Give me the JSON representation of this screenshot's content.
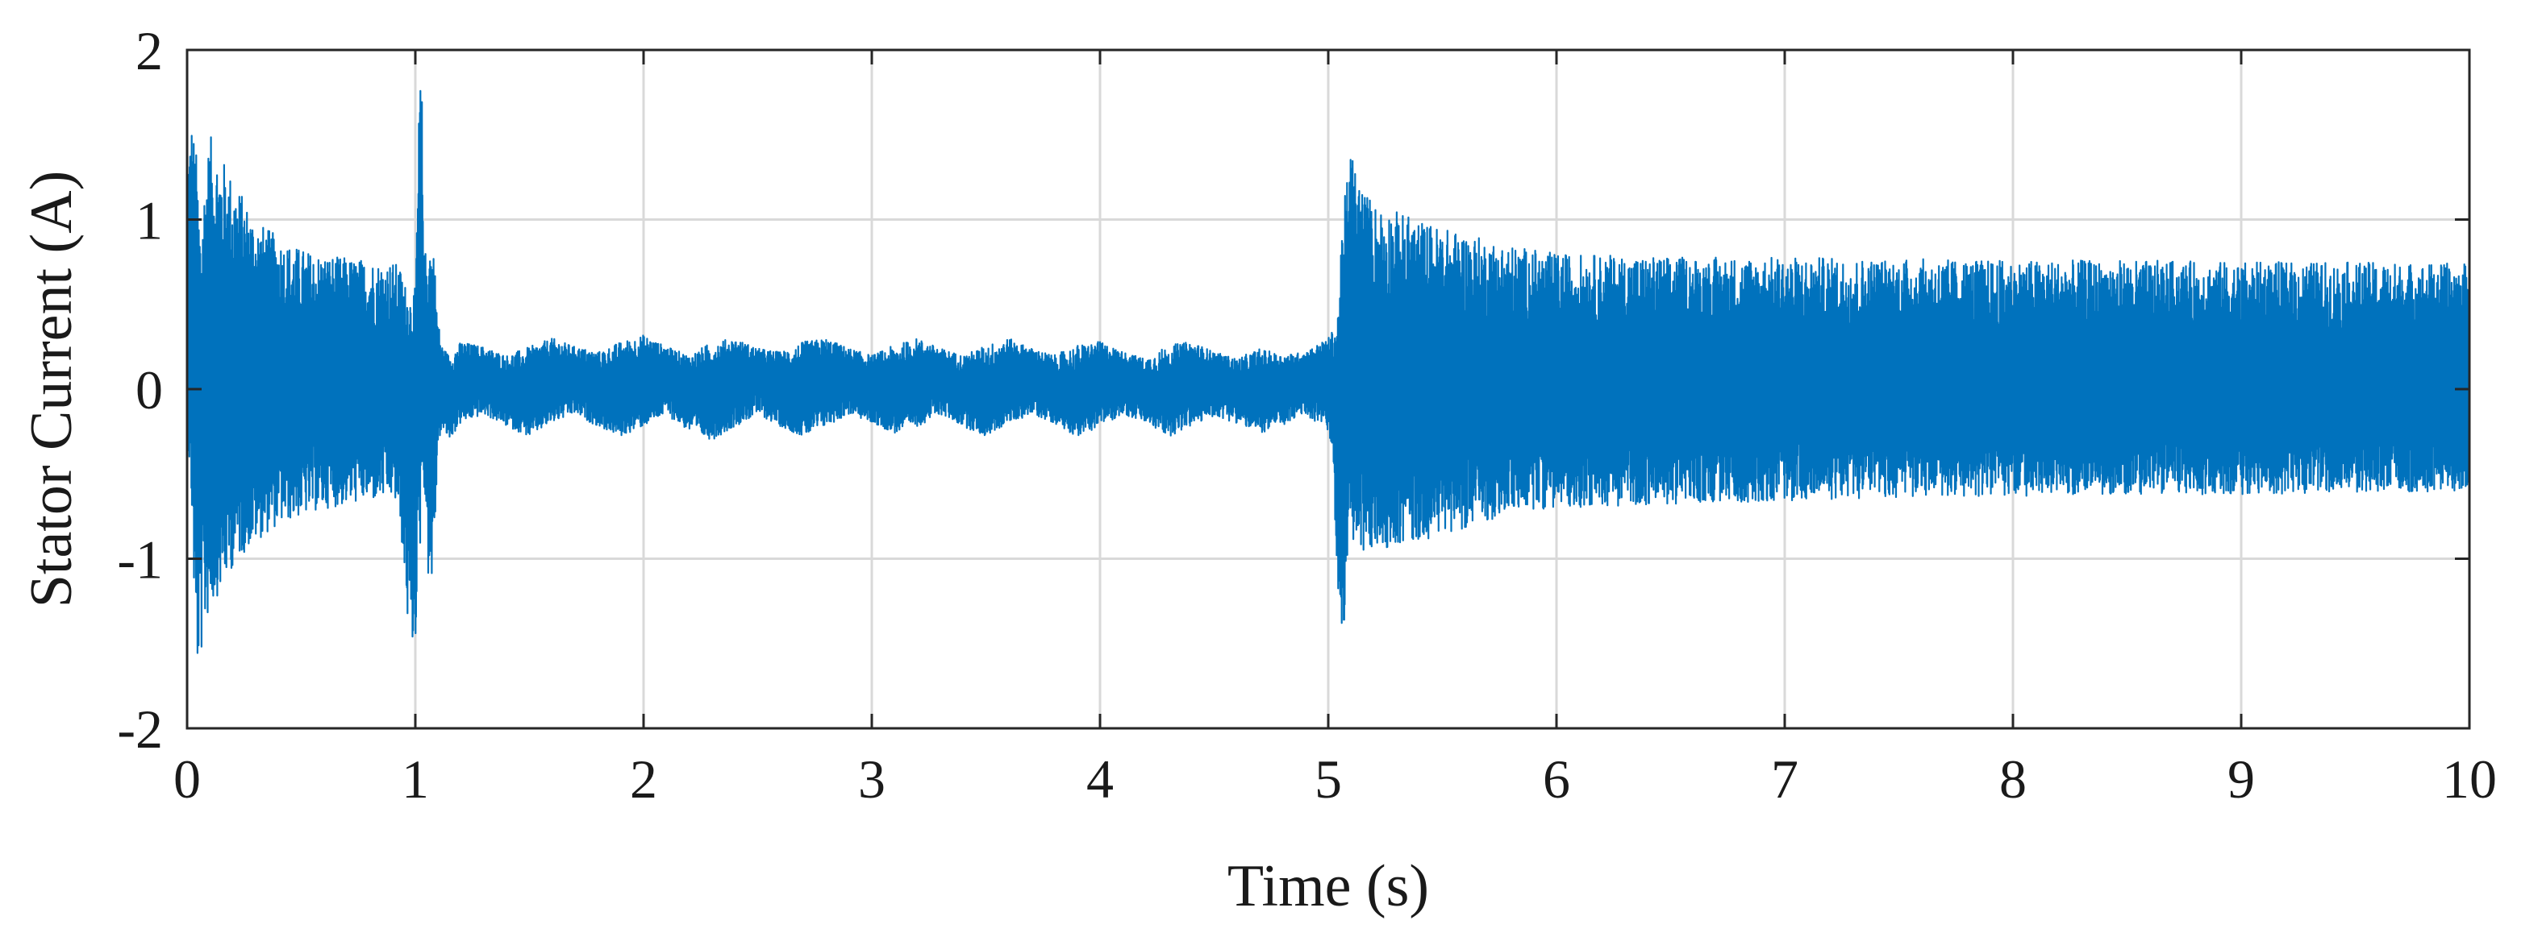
{
  "chart_data": {
    "type": "line",
    "title": "",
    "xlabel": "Time (s)",
    "ylabel": "Stator Current (A)",
    "xlim": [
      0,
      10
    ],
    "ylim": [
      -2,
      2
    ],
    "x_ticks": [
      0,
      1,
      2,
      3,
      4,
      5,
      6,
      7,
      8,
      9,
      10
    ],
    "x_tick_labels": [
      "0",
      "1",
      "2",
      "3",
      "4",
      "5",
      "6",
      "7",
      "8",
      "9",
      "10"
    ],
    "y_ticks": [
      2,
      1,
      0,
      -1,
      -2
    ],
    "y_tick_labels": [
      "2",
      "1",
      "0",
      "-1",
      "-2"
    ],
    "grid": true,
    "legend": "none",
    "color": "#0072bd",
    "series": [
      {
        "description_note": "",
        "x": [
          0.0,
          0.02,
          0.04,
          0.06,
          0.08,
          0.1,
          0.12,
          0.14,
          0.16,
          0.18,
          0.2,
          0.22,
          0.24,
          0.26,
          0.28,
          0.3,
          0.32,
          0.34,
          0.36,
          0.38,
          0.4,
          0.42,
          0.44,
          0.46,
          0.48,
          0.5,
          0.52,
          0.54,
          0.56,
          0.58,
          0.6,
          0.62,
          0.64,
          0.66,
          0.68,
          0.7,
          0.72,
          0.74,
          0.76,
          0.78,
          0.8,
          0.82,
          0.84,
          0.86,
          0.88,
          0.9,
          0.92,
          0.94,
          0.96,
          0.98,
          1.0,
          1.02,
          1.03,
          1.04,
          1.06,
          1.08,
          1.1,
          1.12,
          1.15,
          1.2,
          1.3,
          1.4,
          1.5,
          1.6,
          1.7,
          1.8,
          1.9,
          2.0,
          2.1,
          2.2,
          2.3,
          2.4,
          2.5,
          2.6,
          2.7,
          2.8,
          2.9,
          3.0,
          3.1,
          3.2,
          3.3,
          3.4,
          3.5,
          3.6,
          3.7,
          3.8,
          3.9,
          4.0,
          4.1,
          4.2,
          4.3,
          4.4,
          4.5,
          4.6,
          4.7,
          4.8,
          4.9,
          5.0,
          5.02,
          5.04,
          5.06,
          5.08,
          5.1,
          5.15,
          5.2,
          5.3,
          5.4,
          5.5,
          5.6,
          5.7,
          5.8,
          6.0,
          6.5,
          7.0,
          7.5,
          8.0,
          8.5,
          9.0,
          9.5,
          10.0
        ],
        "y_upper": [
          1.4,
          1.6,
          1.4,
          0.9,
          1.3,
          1.5,
          1.45,
          1.4,
          1.35,
          1.3,
          1.25,
          1.2,
          1.15,
          1.1,
          1.05,
          1.0,
          0.98,
          0.96,
          0.94,
          0.92,
          0.9,
          0.88,
          0.86,
          0.85,
          0.84,
          0.83,
          0.82,
          0.81,
          0.8,
          0.8,
          0.8,
          0.79,
          0.79,
          0.78,
          0.78,
          0.78,
          0.77,
          0.77,
          0.77,
          0.76,
          0.76,
          0.76,
          0.75,
          0.75,
          0.75,
          0.75,
          0.74,
          0.7,
          0.6,
          0.55,
          0.6,
          1.9,
          1.7,
          0.8,
          0.9,
          0.85,
          0.4,
          0.25,
          0.2,
          0.28,
          0.25,
          0.2,
          0.25,
          0.3,
          0.25,
          0.22,
          0.28,
          0.32,
          0.25,
          0.2,
          0.28,
          0.3,
          0.24,
          0.22,
          0.28,
          0.3,
          0.24,
          0.2,
          0.26,
          0.3,
          0.24,
          0.2,
          0.26,
          0.3,
          0.24,
          0.2,
          0.26,
          0.28,
          0.22,
          0.18,
          0.26,
          0.28,
          0.22,
          0.18,
          0.24,
          0.2,
          0.22,
          0.3,
          0.35,
          0.4,
          0.9,
          1.3,
          1.42,
          1.2,
          1.1,
          1.05,
          1.0,
          0.95,
          0.92,
          0.88,
          0.85,
          0.8,
          0.78,
          0.78,
          0.77,
          0.76,
          0.76,
          0.75,
          0.75,
          0.74
        ],
        "y_lower": [
          -0.2,
          -0.7,
          -1.7,
          -1.6,
          -1.4,
          -1.3,
          -1.25,
          -1.2,
          -1.15,
          -1.1,
          -1.05,
          -1.0,
          -0.98,
          -0.95,
          -0.92,
          -0.9,
          -0.88,
          -0.86,
          -0.84,
          -0.82,
          -0.8,
          -0.79,
          -0.78,
          -0.77,
          -0.76,
          -0.75,
          -0.74,
          -0.73,
          -0.72,
          -0.72,
          -0.71,
          -0.7,
          -0.7,
          -0.69,
          -0.69,
          -0.68,
          -0.68,
          -0.67,
          -0.67,
          -0.66,
          -0.66,
          -0.66,
          -0.65,
          -0.65,
          -0.65,
          -0.64,
          -0.7,
          -0.9,
          -1.3,
          -1.6,
          -1.5,
          -1.0,
          -0.5,
          -0.6,
          -1.2,
          -1.1,
          -0.3,
          -0.25,
          -0.3,
          -0.2,
          -0.15,
          -0.22,
          -0.28,
          -0.2,
          -0.15,
          -0.22,
          -0.28,
          -0.22,
          -0.15,
          -0.25,
          -0.3,
          -0.22,
          -0.15,
          -0.22,
          -0.28,
          -0.22,
          -0.15,
          -0.2,
          -0.26,
          -0.22,
          -0.15,
          -0.22,
          -0.28,
          -0.2,
          -0.15,
          -0.2,
          -0.28,
          -0.22,
          -0.15,
          -0.2,
          -0.28,
          -0.22,
          -0.16,
          -0.2,
          -0.26,
          -0.22,
          -0.15,
          -0.25,
          -0.4,
          -1.2,
          -1.8,
          -1.0,
          -0.9,
          -1.0,
          -0.95,
          -0.92,
          -0.9,
          -0.85,
          -0.82,
          -0.78,
          -0.72,
          -0.7,
          -0.68,
          -0.66,
          -0.64,
          -0.63,
          -0.62,
          -0.62,
          -0.61,
          -0.6
        ],
        "y_center": [
          0.1,
          0.1,
          0.0,
          0.0,
          0.0,
          0.0,
          0.0,
          0.0,
          0.0,
          0.0,
          0.0,
          0.0,
          0.0,
          0.0,
          0.0,
          0.0,
          0.0,
          0.0,
          0.0,
          0.0,
          0.0,
          0.0,
          0.0,
          0.0,
          0.0,
          0.0,
          0.0,
          0.0,
          0.0,
          0.0,
          0.0,
          0.0,
          0.0,
          0.0,
          0.0,
          0.0,
          0.0,
          0.0,
          0.0,
          0.0,
          0.0,
          0.0,
          0.0,
          0.0,
          0.0,
          0.0,
          0.0,
          0.0,
          0.0,
          0.0,
          0.0,
          0.2,
          0.2,
          0.1,
          0.0,
          0.0,
          0.0,
          0.0,
          -0.05,
          0.05,
          0.05,
          0.0,
          -0.05,
          0.05,
          0.1,
          0.0,
          -0.05,
          0.05,
          0.1,
          0.0,
          -0.05,
          0.05,
          0.1,
          0.0,
          -0.05,
          0.05,
          0.1,
          0.0,
          -0.05,
          0.05,
          0.1,
          0.0,
          -0.05,
          0.05,
          0.1,
          0.0,
          -0.05,
          0.05,
          0.1,
          0.0,
          -0.05,
          0.05,
          0.08,
          0.0,
          -0.05,
          0.05,
          0.1,
          0.1,
          0.0,
          0.0,
          0.0,
          0.0,
          0.0,
          0.0,
          0.0,
          0.0,
          0.0,
          0.0,
          0.0,
          0.0,
          0.0,
          0.0,
          0.0,
          0.0,
          0.0,
          0.0,
          0.0,
          0.0,
          0.0,
          0.0
        ]
      }
    ]
  }
}
